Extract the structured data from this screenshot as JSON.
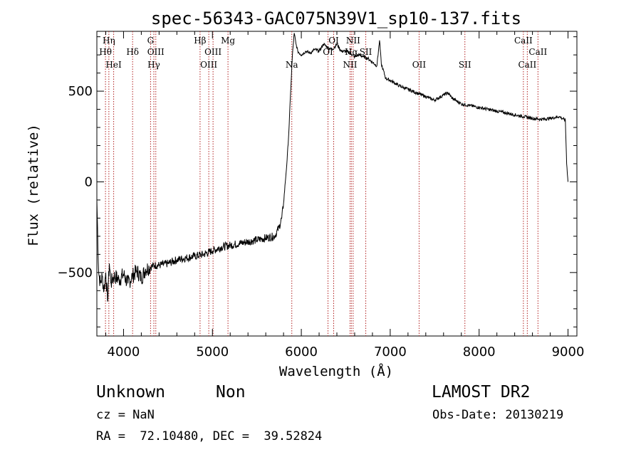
{
  "chart_data": {
    "type": "line",
    "title": "spec-56343-GAC075N39V1_sp10-137.fits",
    "xlabel": "Wavelength (Å)",
    "ylabel": "Flux (relative)",
    "xlim": [
      3700,
      9100
    ],
    "ylim": [
      -850,
      830
    ],
    "x_ticks": [
      4000,
      5000,
      6000,
      7000,
      8000,
      9000
    ],
    "x_tick_labels": [
      "4000",
      "5000",
      "6000",
      "7000",
      "8000",
      "9000"
    ],
    "y_ticks": [
      -500,
      0,
      500
    ],
    "y_tick_labels": [
      "−500",
      "0",
      "500"
    ],
    "grid": false,
    "line_color": "#000000",
    "marker_color": "#b22222",
    "spectrum": {
      "x": [
        3700,
        3720,
        3740,
        3760,
        3780,
        3800,
        3820,
        3840,
        3860,
        3880,
        3900,
        3950,
        4000,
        4050,
        4100,
        4150,
        4200,
        4250,
        4300,
        4350,
        4400,
        4500,
        4600,
        4700,
        4800,
        4900,
        5000,
        5100,
        5200,
        5300,
        5400,
        5500,
        5600,
        5700,
        5750,
        5780,
        5800,
        5820,
        5840,
        5860,
        5880,
        5900,
        5920,
        5940,
        5960,
        6000,
        6050,
        6100,
        6150,
        6200,
        6250,
        6300,
        6350,
        6400,
        6450,
        6500,
        6550,
        6600,
        6650,
        6700,
        6750,
        6800,
        6850,
        6880,
        6900,
        6950,
        7000,
        7100,
        7200,
        7300,
        7400,
        7500,
        7600,
        7650,
        7700,
        7800,
        7900,
        8000,
        8100,
        8200,
        8300,
        8400,
        8500,
        8600,
        8700,
        8800,
        8900,
        8970,
        8985,
        9000
      ],
      "y": [
        -100,
        -500,
        -560,
        -520,
        -600,
        -500,
        -660,
        -450,
        -560,
        -530,
        -520,
        -540,
        -510,
        -560,
        -520,
        -490,
        -530,
        -480,
        -470,
        -460,
        -460,
        -450,
        -430,
        -420,
        -410,
        -400,
        -380,
        -360,
        -350,
        -340,
        -330,
        -320,
        -310,
        -300,
        -250,
        -200,
        -120,
        0,
        120,
        280,
        500,
        700,
        820,
        760,
        720,
        700,
        720,
        710,
        730,
        720,
        760,
        740,
        730,
        760,
        720,
        720,
        710,
        690,
        700,
        690,
        680,
        660,
        640,
        780,
        650,
        570,
        560,
        530,
        510,
        490,
        470,
        450,
        480,
        490,
        460,
        430,
        420,
        410,
        400,
        390,
        380,
        370,
        360,
        350,
        345,
        350,
        360,
        340,
        100,
        0
      ]
    },
    "lines": [
      {
        "label": "Hη",
        "x": 3835,
        "row": 0
      },
      {
        "label": "Hθ",
        "x": 3797,
        "row": 1
      },
      {
        "label": "HeI",
        "x": 3889,
        "row": 2
      },
      {
        "label": "Hδ",
        "x": 4102,
        "row": 1
      },
      {
        "label": "G",
        "x": 4304,
        "row": 0
      },
      {
        "label": "OIII",
        "x": 4363,
        "row": 1
      },
      {
        "label": "Hγ",
        "x": 4341,
        "row": 2
      },
      {
        "label": "Hβ",
        "x": 4861,
        "row": 0
      },
      {
        "label": "OIII",
        "x": 5007,
        "row": 1
      },
      {
        "label": "OIII",
        "x": 4959,
        "row": 2
      },
      {
        "label": "Mg",
        "x": 5175,
        "row": 0
      },
      {
        "label": "Na",
        "x": 5893,
        "row": 2
      },
      {
        "label": "OI",
        "x": 6364,
        "row": 0
      },
      {
        "label": "OI",
        "x": 6300,
        "row": 1
      },
      {
        "label": "NII",
        "x": 6583,
        "row": 0
      },
      {
        "label": "Hα",
        "x": 6563,
        "row": 1
      },
      {
        "label": "NII",
        "x": 6548,
        "row": 2
      },
      {
        "label": "SII",
        "x": 6725,
        "row": 1
      },
      {
        "label": "OII",
        "x": 7325,
        "row": 2
      },
      {
        "label": "SII",
        "x": 7840,
        "row": 2
      },
      {
        "label": "CaII",
        "x": 8498,
        "row": 0
      },
      {
        "label": "CaII",
        "x": 8662,
        "row": 1
      },
      {
        "label": "CaII",
        "x": 8542,
        "row": 2
      }
    ]
  },
  "info": {
    "object_class": "Unknown",
    "object_subclass": "Non",
    "survey": "LAMOST DR2",
    "cz": "cz = NaN",
    "obs_date": "Obs-Date: 20130219",
    "coords": "RA =  72.10480, DEC =  39.52824"
  }
}
